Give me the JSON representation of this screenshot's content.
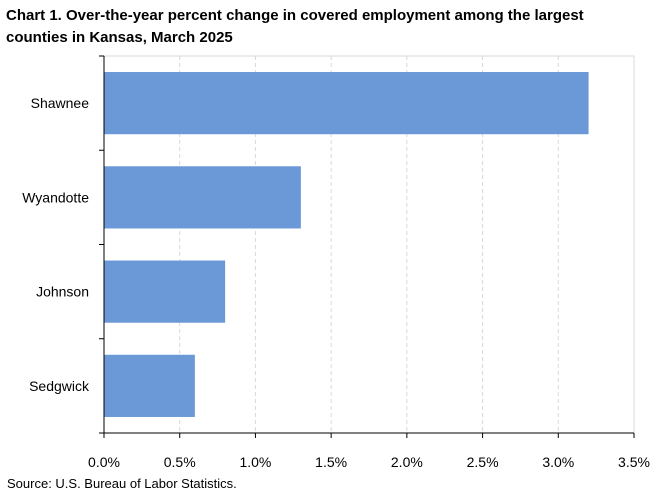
{
  "chart_data": {
    "type": "bar",
    "orientation": "horizontal",
    "title": "Chart 1. Over-the-year percent change in covered employment among the largest counties in Kansas, March 2025",
    "categories": [
      "Shawnee",
      "Wyandotte",
      "Johnson",
      "Sedgwick"
    ],
    "values": [
      3.2,
      1.3,
      0.8,
      0.6
    ],
    "xlabel": "",
    "ylabel": "",
    "xlim": [
      0,
      3.5
    ],
    "x_ticks": [
      0,
      0.5,
      1.0,
      1.5,
      2.0,
      2.5,
      3.0,
      3.5
    ],
    "x_tick_labels": [
      "0.0%",
      "0.5%",
      "1.0%",
      "1.5%",
      "2.0%",
      "2.5%",
      "3.0%",
      "3.5%"
    ],
    "grid": "vertical dashed",
    "legend": "none",
    "bar_color": "#6b98d6",
    "grid_color": "#d9d9d9",
    "axis_color": "#000000"
  },
  "footer": {
    "source": "Source: U.S. Bureau of Labor Statistics."
  }
}
